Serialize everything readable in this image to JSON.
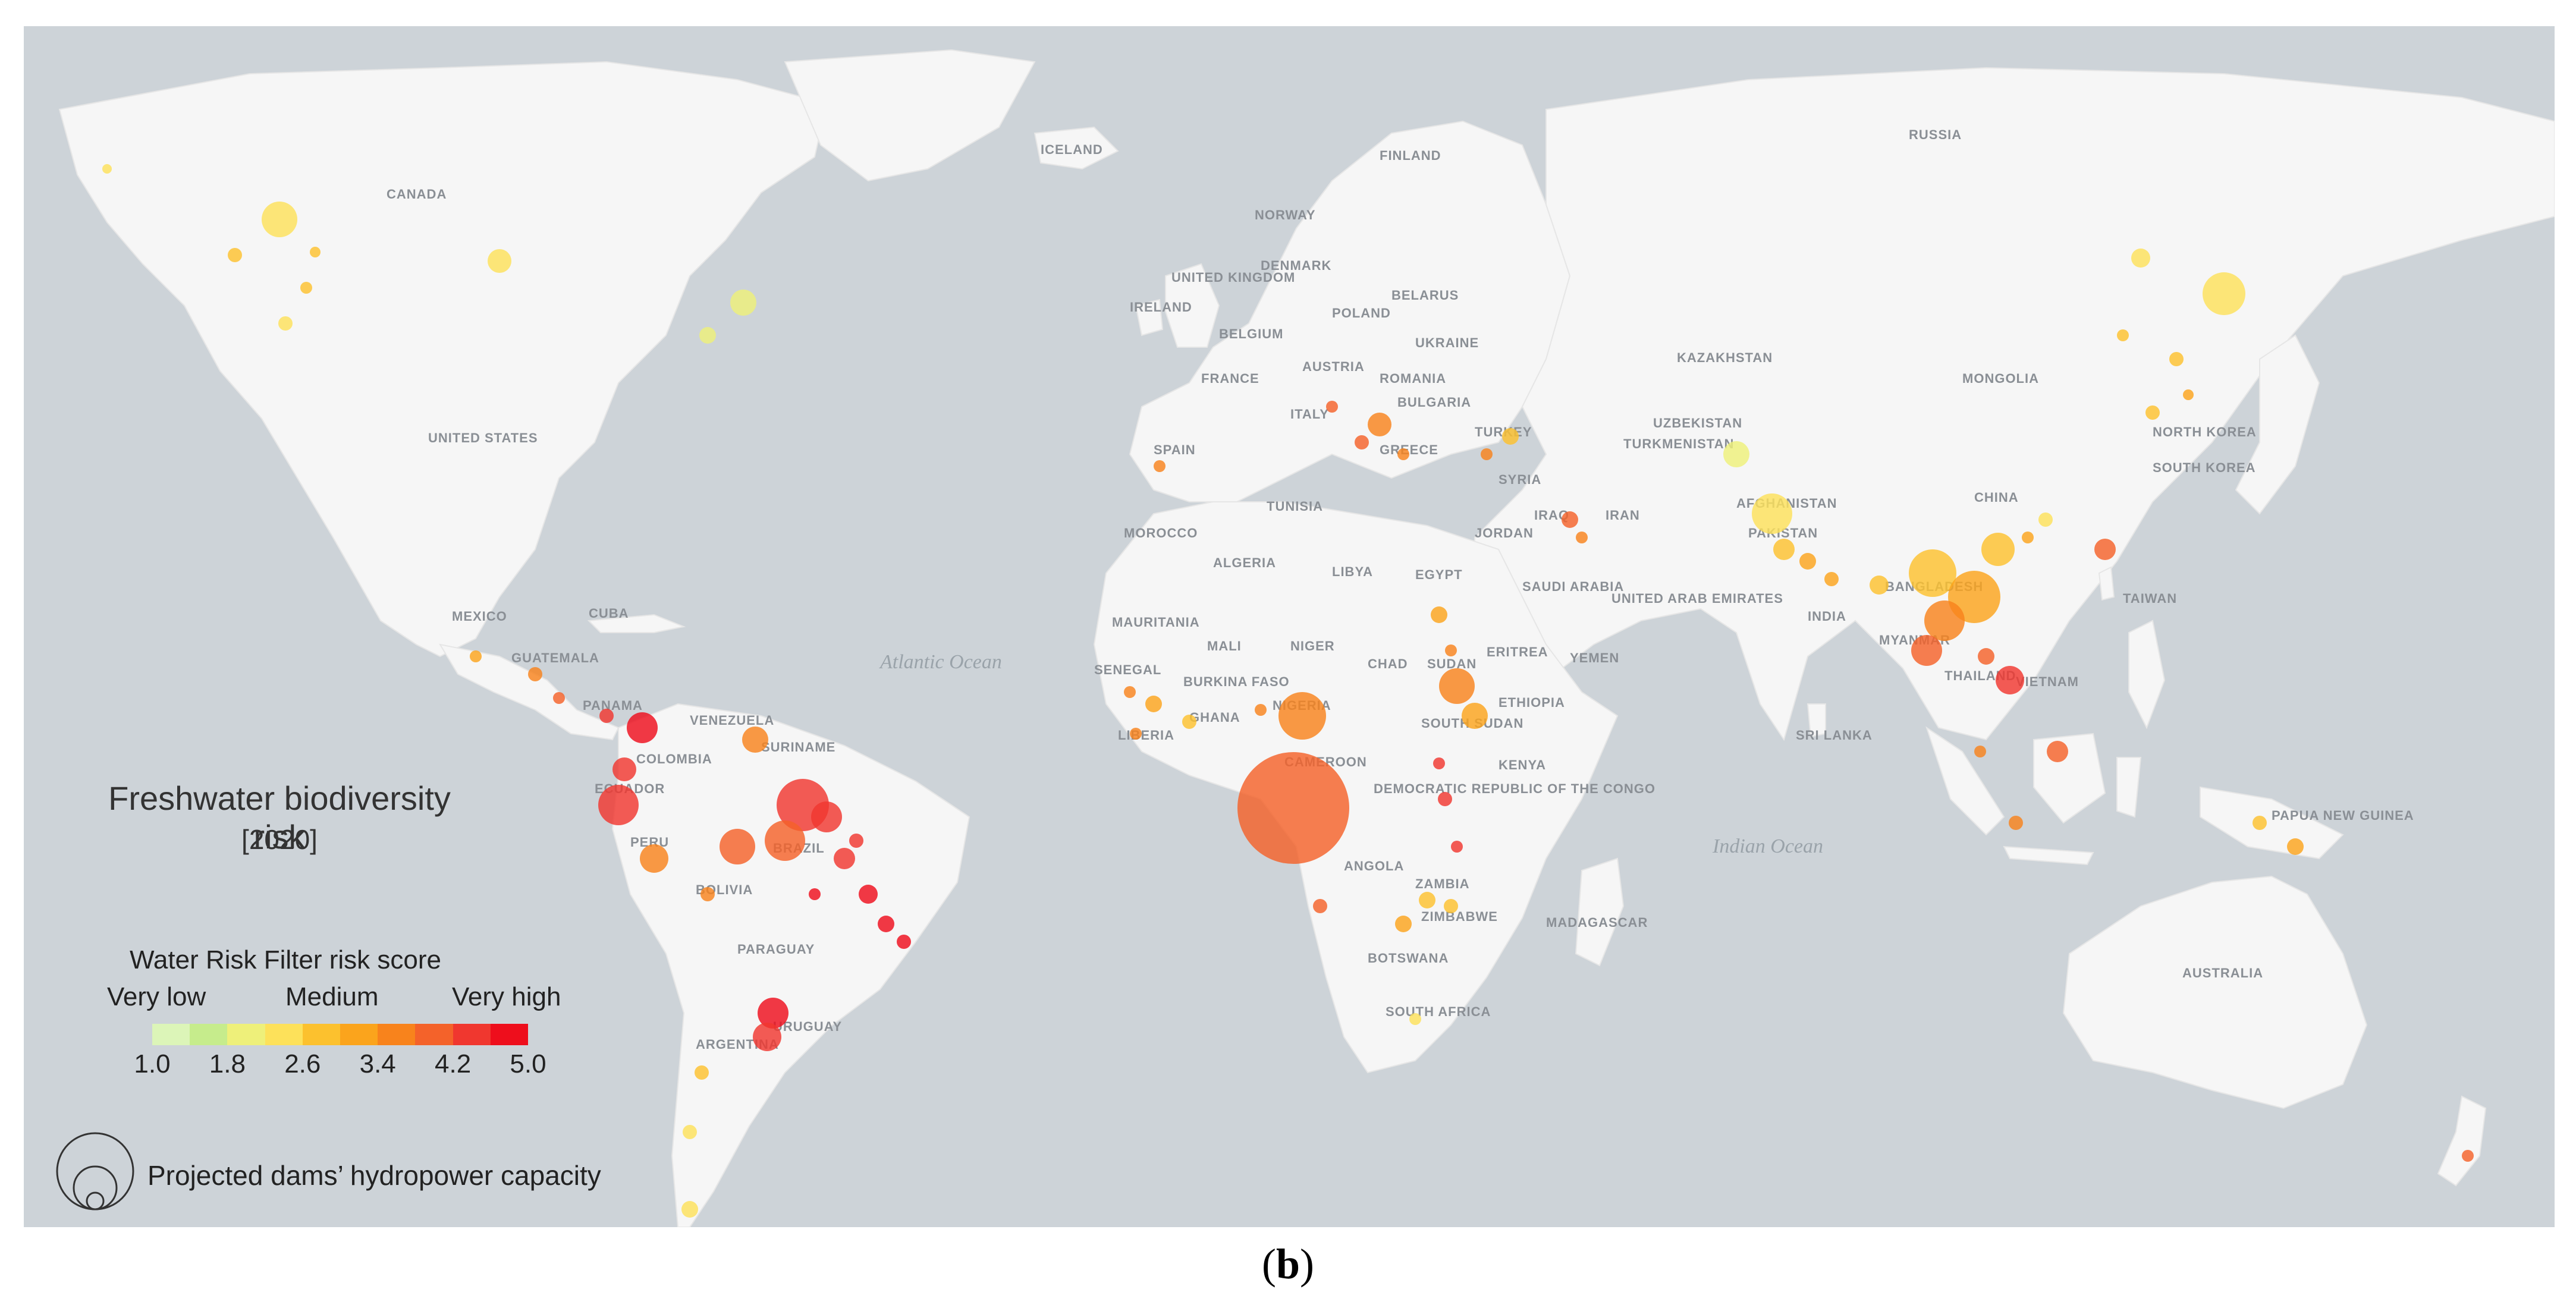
{
  "legend": {
    "title": "Freshwater biodiversity risk",
    "year": "[2020]",
    "score_title": "Water Risk Filter risk score",
    "level_low": "Very low",
    "level_mid": "Medium",
    "level_high": "Very high",
    "ticks": [
      "1.0",
      "1.8",
      "2.6",
      "3.4",
      "4.2",
      "5.0"
    ],
    "colors": [
      "#dcf5b8",
      "#c6ec8c",
      "#eef07a",
      "#fde15a",
      "#fcc12e",
      "#fba41c",
      "#f8831c",
      "#f4622a",
      "#f0372f",
      "#ee0e1c"
    ],
    "size_label": "Projected dams’ hydropower capacity"
  },
  "caption": {
    "open": "(",
    "letter": "b",
    "close": ")"
  },
  "map": {
    "country_labels": [
      "CANADA",
      "UNITED STATES",
      "MEXICO",
      "CUBA",
      "GUATEMALA",
      "PANAMA",
      "VENEZUELA",
      "COLOMBIA",
      "SURINAME",
      "ECUADOR",
      "PERU",
      "BRAZIL",
      "BOLIVIA",
      "PARAGUAY",
      "URUGUAY",
      "ARGENTINA",
      "ICELAND",
      "NORWAY",
      "FINLAND",
      "RUSSIA",
      "UNITED KINGDOM",
      "IRELAND",
      "DENMARK",
      "BELARUS",
      "POLAND",
      "BELGIUM",
      "UKRAINE",
      "FRANCE",
      "AUSTRIA",
      "ROMANIA",
      "BULGARIA",
      "ITALY",
      "SPAIN",
      "GREECE",
      "TURKEY",
      "KAZAKHSTAN",
      "UZBEKISTAN",
      "TURKMENISTAN",
      "MONGOLIA",
      "NORTH KOREA",
      "SOUTH KOREA",
      "CHINA",
      "AFGHANISTAN",
      "PAKISTAN",
      "IRAN",
      "IRAQ",
      "SYRIA",
      "JORDAN",
      "TUNISIA",
      "MOROCCO",
      "ALGERIA",
      "LIBYA",
      "EGYPT",
      "SAUDI ARABIA",
      "UNITED ARAB EMIRATES",
      "YEMEN",
      "INDIA",
      "BANGLADESH",
      "MYANMAR",
      "THAILAND",
      "VIETNAM",
      "TAIWAN",
      "SRI LANKA",
      "MAURITANIA",
      "MALI",
      "NIGER",
      "CHAD",
      "SUDAN",
      "ERITREA",
      "ETHIOPIA",
      "SOUTH SUDAN",
      "SENEGAL",
      "BURKINA FASO",
      "GHANA",
      "LIBERIA",
      "NIGERIA",
      "CAMEROON",
      "DEMOCRATIC REPUBLIC OF THE CONGO",
      "KENYA",
      "ANGOLA",
      "ZAMBIA",
      "ZIMBABWE",
      "BOTSWANA",
      "SOUTH AFRICA",
      "MADAGASCAR",
      "PAPUA NEW GUINEA",
      "AUSTRALIA"
    ],
    "ocean_labels": [
      "Atlantic Ocean",
      "Indian Ocean"
    ]
  }
}
